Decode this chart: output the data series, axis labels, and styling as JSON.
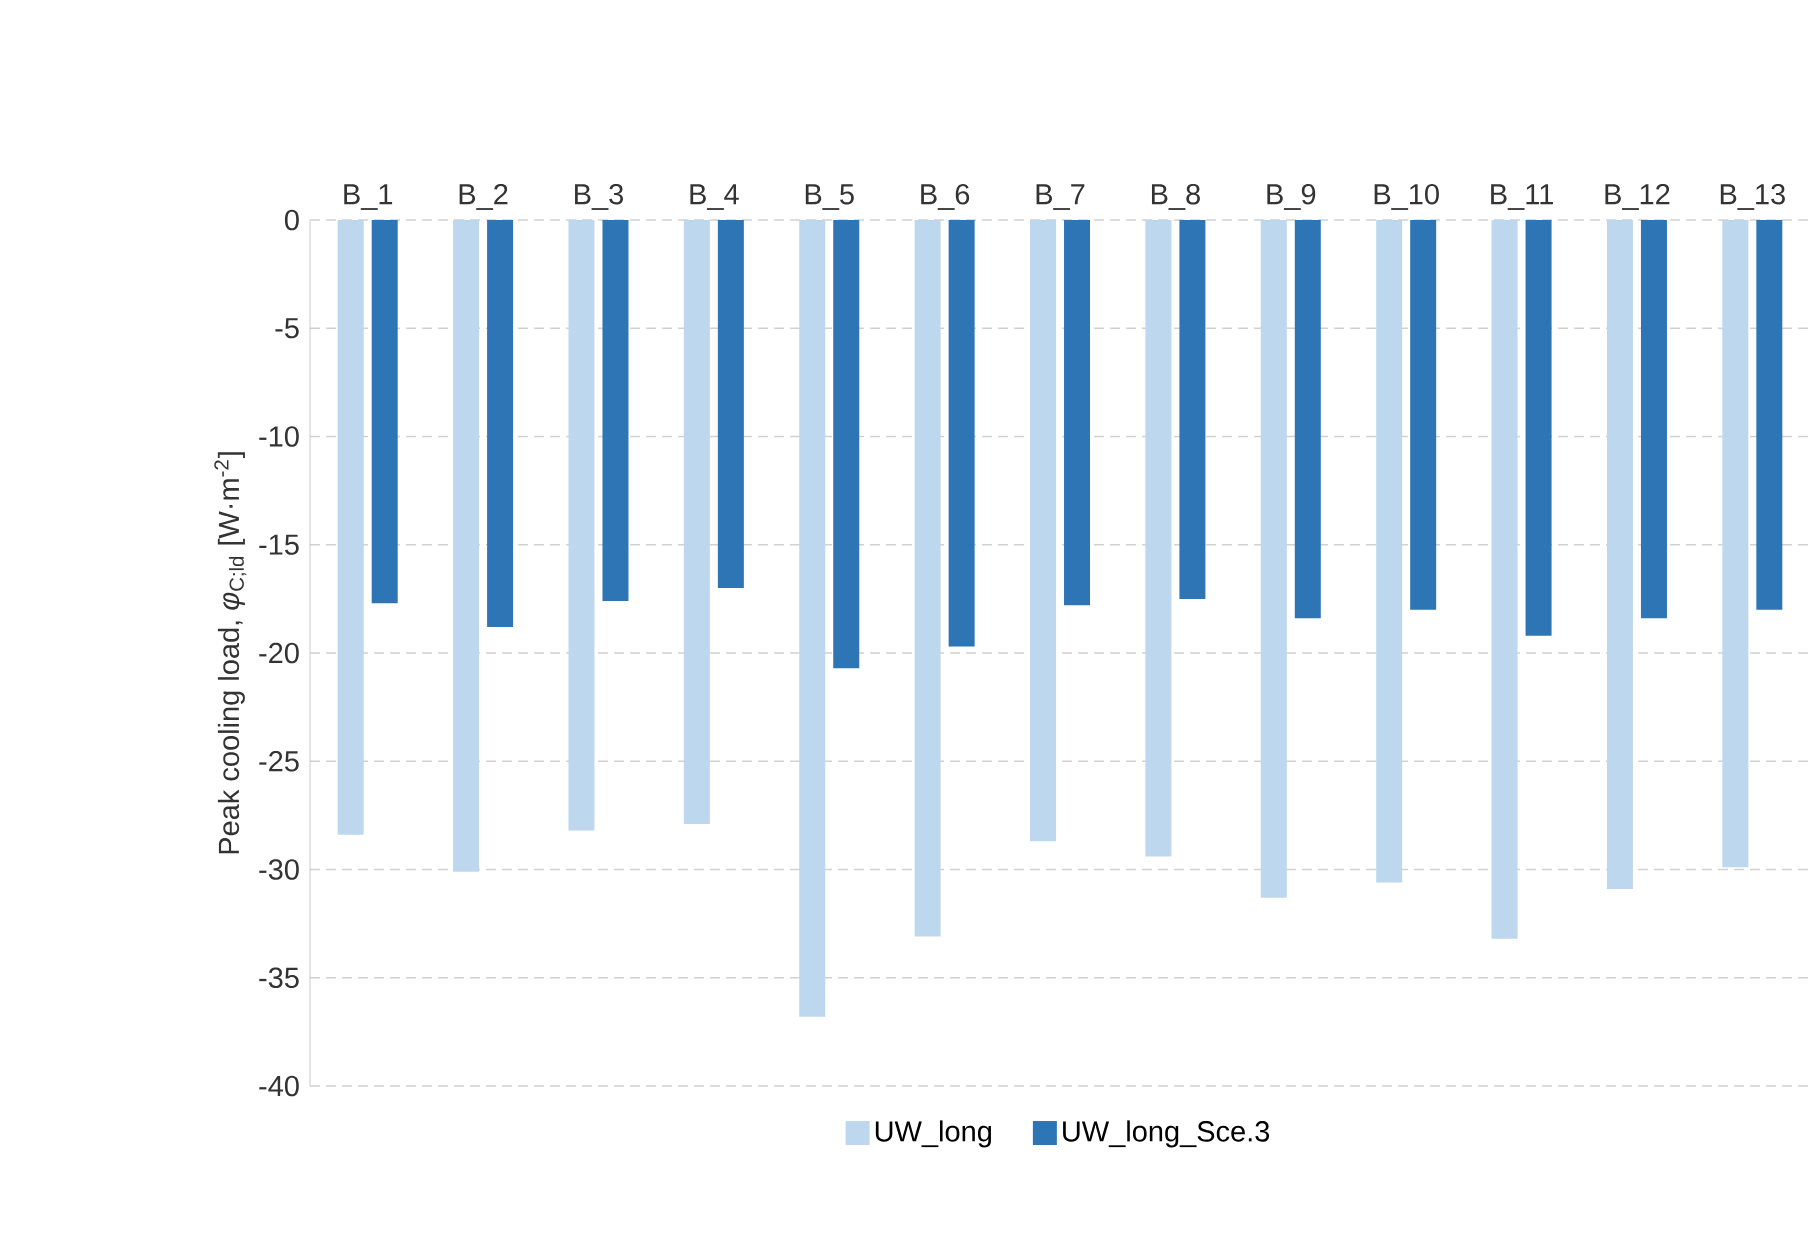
{
  "chart_data": {
    "type": "bar",
    "ylabel": "Peak cooling load, *φ*$_{C;ld}$ [W·m$^{-2}$]",
    "categories": [
      "B_1",
      "B_2",
      "B_3",
      "B_4",
      "B_5",
      "B_6",
      "B_7",
      "B_8",
      "B_9",
      "B_10",
      "B_11",
      "B_12",
      "B_13"
    ],
    "series": [
      {
        "name": "UW_long",
        "color": "#bdd7ee",
        "values": [
          -28.4,
          -30.1,
          -28.2,
          -27.9,
          -36.8,
          -33.1,
          -28.7,
          -29.4,
          -31.3,
          -30.6,
          -33.2,
          -30.9,
          -29.9
        ]
      },
      {
        "name": "UW_long_Sce.3",
        "color": "#2e75b6",
        "values": [
          -17.7,
          -18.8,
          -17.6,
          -17.0,
          -20.7,
          -19.7,
          -17.8,
          -17.5,
          -18.4,
          -18.0,
          -19.2,
          -18.4,
          -18.0
        ]
      }
    ],
    "ylim": [
      -40,
      0
    ],
    "yticks": [
      -40,
      -35,
      -30,
      -25,
      -20,
      -15,
      -10,
      -5,
      0
    ],
    "grid": "y",
    "legend": "bottom"
  }
}
